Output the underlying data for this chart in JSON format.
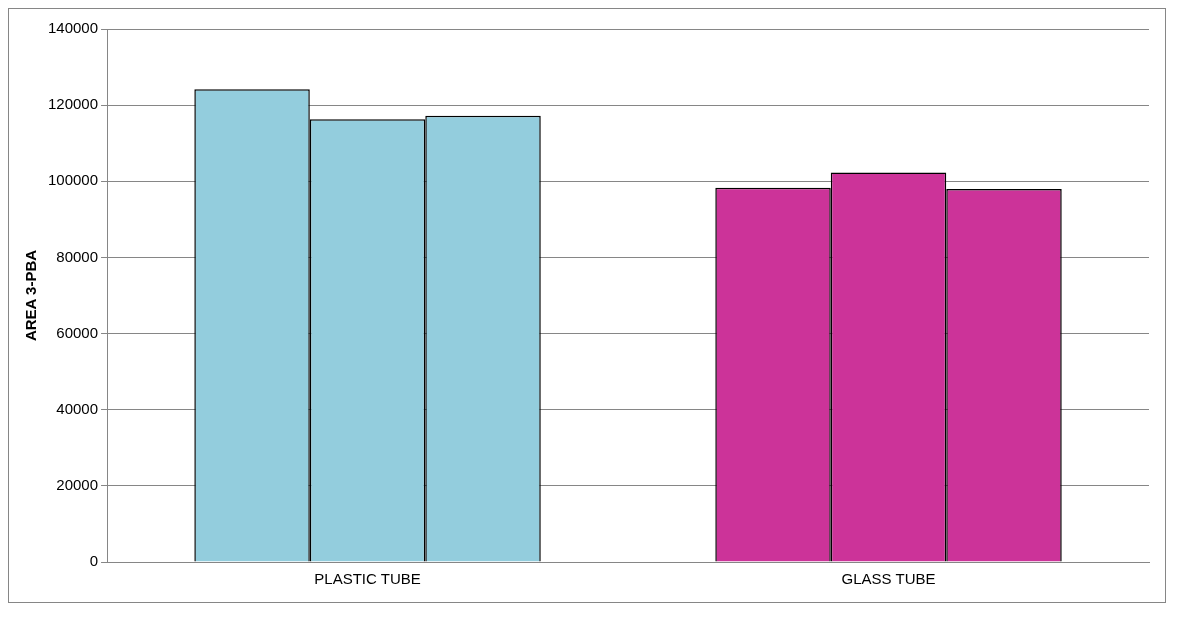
{
  "chart_data": {
    "type": "bar",
    "ylabel": "AREA 3-PBA",
    "categories": [
      "PLASTIC TUBE",
      "GLASS TUBE"
    ],
    "series": [
      {
        "colors": [
          "#93cddd",
          "#cc3399"
        ],
        "values": [
          124200,
          98300
        ]
      },
      {
        "colors": [
          "#93cddd",
          "#cc3399"
        ],
        "values": [
          116300,
          102300
        ]
      },
      {
        "colors": [
          "#93cddd",
          "#cc3399"
        ],
        "values": [
          117200,
          98000
        ]
      }
    ],
    "ylim": [
      0,
      140000
    ],
    "yticks": [
      0,
      20000,
      40000,
      60000,
      80000,
      100000,
      120000,
      140000
    ],
    "grid": "y",
    "legend": false
  }
}
